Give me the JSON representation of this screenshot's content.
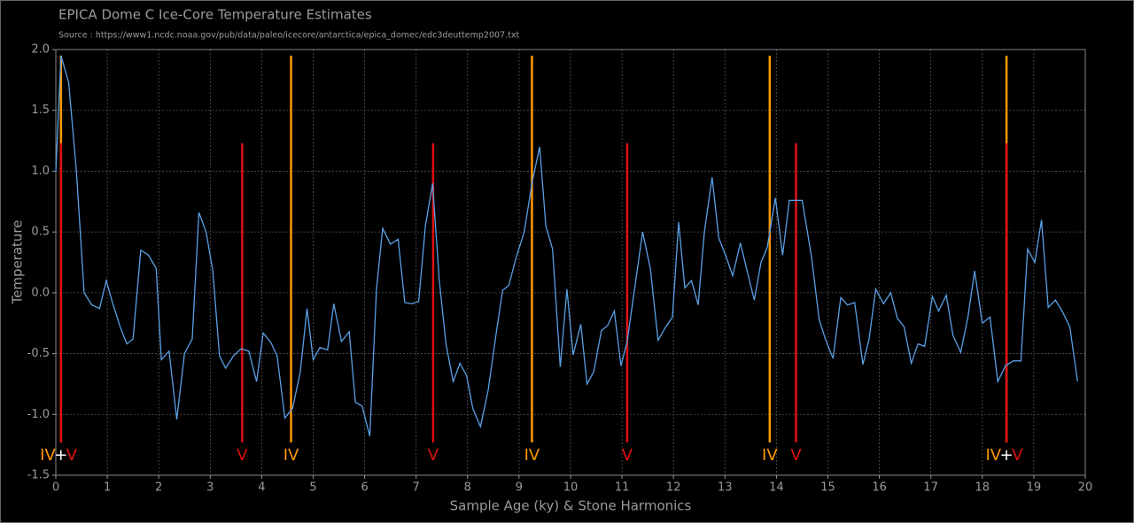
{
  "chart_data": {
    "type": "line",
    "title": "EPICA Dome C Ice-Core Temperature Estimates",
    "subtitle": "Source : https://www1.ncdc.noaa.gov/pub/data/paleo/icecore/antarctica/epica_domec/edc3deuttemp2007.txt",
    "xlabel": "Sample Age (ky) & Stone Harmonics",
    "ylabel": "Temperature",
    "color": "#5aa0e6",
    "x": [
      0,
      0.1,
      0.25,
      0.4,
      0.55,
      0.7,
      0.85,
      0.98,
      1.1,
      1.25,
      1.38,
      1.5,
      1.65,
      1.8,
      1.95,
      2.05,
      2.2,
      2.35,
      2.5,
      2.65,
      2.78,
      2.92,
      3.05,
      3.18,
      3.3,
      3.45,
      3.6,
      3.75,
      3.9,
      4.03,
      4.18,
      4.3,
      4.45,
      4.6,
      4.75,
      4.88,
      5.0,
      5.13,
      5.28,
      5.4,
      5.55,
      5.7,
      5.82,
      5.95,
      6.1,
      6.23,
      6.35,
      6.5,
      6.65,
      6.78,
      6.92,
      7.05,
      7.18,
      7.32,
      7.45,
      7.58,
      7.72,
      7.85,
      7.98,
      8.1,
      8.25,
      8.4,
      8.55,
      8.68,
      8.8,
      8.95,
      9.1,
      9.25,
      9.4,
      9.52,
      9.65,
      9.8,
      9.93,
      10.05,
      10.2,
      10.32,
      10.45,
      10.6,
      10.72,
      10.85,
      10.98,
      11.1,
      11.25,
      11.4,
      11.55,
      11.7,
      11.85,
      11.98,
      12.1,
      12.22,
      12.35,
      12.48,
      12.6,
      12.75,
      12.88,
      13.02,
      13.15,
      13.3,
      13.43,
      13.57,
      13.7,
      13.82,
      13.98,
      14.12,
      14.25,
      14.5,
      14.68,
      14.83,
      14.95,
      15.1,
      15.25,
      15.38,
      15.52,
      15.68,
      15.8,
      15.93,
      16.08,
      16.22,
      16.35,
      16.48,
      16.62,
      16.75,
      16.88,
      17.03,
      17.15,
      17.3,
      17.43,
      17.58,
      17.72,
      17.85,
      18.0,
      18.15,
      18.3,
      18.45,
      18.6,
      18.75,
      18.88,
      19.02,
      19.15,
      19.28,
      19.42,
      19.55,
      19.7,
      19.85
    ],
    "values": [
      1.0,
      1.95,
      1.73,
      1.0,
      0.0,
      -0.1,
      -0.13,
      0.1,
      -0.08,
      -0.28,
      -0.42,
      -0.38,
      0.35,
      0.31,
      0.2,
      -0.55,
      -0.48,
      -1.04,
      -0.5,
      -0.38,
      0.66,
      0.5,
      0.18,
      -0.52,
      -0.62,
      -0.52,
      -0.46,
      -0.48,
      -0.73,
      -0.33,
      -0.41,
      -0.52,
      -1.03,
      -0.95,
      -0.65,
      -0.13,
      -0.55,
      -0.45,
      -0.47,
      -0.09,
      -0.4,
      -0.32,
      -0.9,
      -0.93,
      -1.18,
      0.03,
      0.53,
      0.4,
      0.44,
      -0.08,
      -0.09,
      -0.07,
      0.55,
      0.9,
      0.1,
      -0.42,
      -0.73,
      -0.58,
      -0.68,
      -0.95,
      -1.1,
      -0.8,
      -0.35,
      0.02,
      0.06,
      0.3,
      0.5,
      0.9,
      1.2,
      0.55,
      0.36,
      -0.61,
      0.03,
      -0.51,
      -0.26,
      -0.75,
      -0.65,
      -0.31,
      -0.27,
      -0.15,
      -0.6,
      -0.4,
      0.05,
      0.5,
      0.2,
      -0.39,
      -0.28,
      -0.2,
      0.58,
      0.04,
      0.1,
      -0.1,
      0.5,
      0.95,
      0.45,
      0.3,
      0.14,
      0.41,
      0.18,
      -0.06,
      0.25,
      0.37,
      0.78,
      0.31,
      0.76,
      0.76,
      0.3,
      -0.22,
      -0.38,
      -0.54,
      -0.04,
      -0.1,
      -0.08,
      -0.59,
      -0.38,
      0.03,
      -0.09,
      0.0,
      -0.21,
      -0.28,
      -0.58,
      -0.42,
      -0.44,
      -0.03,
      -0.15,
      -0.02,
      -0.35,
      -0.49,
      -0.2,
      0.18,
      -0.25,
      -0.2,
      -0.73,
      -0.6,
      -0.56,
      -0.56,
      0.36,
      0.25,
      0.6,
      -0.12,
      -0.06,
      -0.15,
      -0.28,
      -0.73
    ],
    "markers": [
      {
        "name": "IV",
        "color": "#ff9900",
        "x": [
          0.1,
          4.57,
          9.25,
          13.87,
          18.47
        ],
        "top": 1.95,
        "bottom": -1.23
      },
      {
        "name": "V",
        "color": "#e01010",
        "x": [
          0.1,
          3.62,
          7.33,
          11.1,
          14.38,
          18.47
        ],
        "top": 1.23,
        "bottom": -1.23
      }
    ],
    "marker_join": "+",
    "xlim": [
      0,
      20
    ],
    "ylim": [
      -1.5,
      2.0
    ],
    "xticks": [
      0,
      1,
      2,
      3,
      4,
      5,
      6,
      7,
      8,
      9,
      10,
      11,
      12,
      13,
      14,
      15,
      16,
      17,
      18,
      19,
      20
    ],
    "yticks": [
      {
        "value": -1.5,
        "label": "-1.5"
      },
      {
        "value": -1.0,
        "label": "-1.0"
      },
      -0.5,
      {
        "value": 0.0,
        "label": "0.0"
      },
      0.5,
      {
        "value": 1.0,
        "label": "1.0"
      },
      1.5,
      {
        "value": 2.0,
        "label": "2.0"
      }
    ],
    "grid": true
  }
}
